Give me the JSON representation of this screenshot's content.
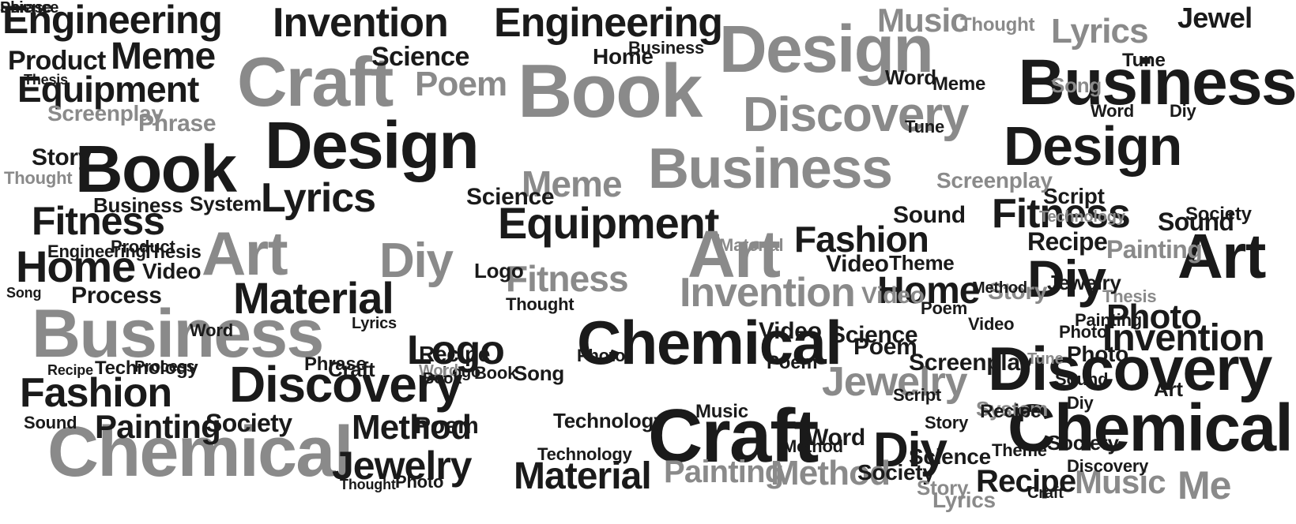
{
  "palette": {
    "dark": "#1a1a1a",
    "mid": "#444444",
    "grey": "#8a8a8a",
    "light": "#b5b5b5"
  },
  "words": [
    {
      "text": "Engineering",
      "color": "dark"
    },
    {
      "text": "Invention",
      "color": "dark"
    },
    {
      "text": "Engineering",
      "color": "dark"
    },
    {
      "text": "Design",
      "color": "grey"
    },
    {
      "text": "Music",
      "color": "grey"
    },
    {
      "text": "Lyrics",
      "color": "grey"
    },
    {
      "text": "Jewel",
      "color": "dark"
    },
    {
      "text": "Meme",
      "color": "dark"
    },
    {
      "text": "Craft",
      "color": "grey"
    },
    {
      "text": "Book",
      "color": "grey"
    },
    {
      "text": "Business",
      "color": "dark"
    },
    {
      "text": "Product",
      "color": "dark"
    },
    {
      "text": "Equipment",
      "color": "dark"
    },
    {
      "text": "Discovery",
      "color": "grey"
    },
    {
      "text": "Design",
      "color": "dark"
    },
    {
      "text": "Book",
      "color": "dark"
    },
    {
      "text": "Business",
      "color": "grey"
    },
    {
      "text": "Design",
      "color": "dark"
    },
    {
      "text": "Lyrics",
      "color": "dark"
    },
    {
      "text": "Meme",
      "color": "grey"
    },
    {
      "text": "Fitness",
      "color": "dark"
    },
    {
      "text": "Art",
      "color": "grey"
    },
    {
      "text": "Diy",
      "color": "grey"
    },
    {
      "text": "Equipment",
      "color": "dark"
    },
    {
      "text": "Art",
      "color": "grey"
    },
    {
      "text": "Fashion",
      "color": "dark"
    },
    {
      "text": "Fitness",
      "color": "dark"
    },
    {
      "text": "Art",
      "color": "dark"
    },
    {
      "text": "Home",
      "color": "dark"
    },
    {
      "text": "Fitness",
      "color": "grey"
    },
    {
      "text": "Invention",
      "color": "grey"
    },
    {
      "text": "Material",
      "color": "dark"
    },
    {
      "text": "Home",
      "color": "dark"
    },
    {
      "text": "Diy",
      "color": "dark"
    },
    {
      "text": "Business",
      "color": "grey"
    },
    {
      "text": "Chemical",
      "color": "dark"
    },
    {
      "text": "Logo",
      "color": "dark"
    },
    {
      "text": "Photo",
      "color": "dark"
    },
    {
      "text": "Invention",
      "color": "dark"
    },
    {
      "text": "Discovery",
      "color": "dark"
    },
    {
      "text": "Fashion",
      "color": "dark"
    },
    {
      "text": "Discovery",
      "color": "dark"
    },
    {
      "text": "Jewelry",
      "color": "grey"
    },
    {
      "text": "Craft",
      "color": "dark"
    },
    {
      "text": "Chemical",
      "color": "grey"
    },
    {
      "text": "Chemical",
      "color": "dark"
    },
    {
      "text": "Painting",
      "color": "dark"
    },
    {
      "text": "Method",
      "color": "dark"
    },
    {
      "text": "Jewelry",
      "color": "dark"
    },
    {
      "text": "Diy",
      "color": "dark"
    },
    {
      "text": "Material",
      "color": "dark"
    },
    {
      "text": "Painting",
      "color": "grey"
    },
    {
      "text": "Method",
      "color": "grey"
    },
    {
      "text": "Recipe",
      "color": "dark"
    },
    {
      "text": "Music",
      "color": "grey"
    },
    {
      "text": "Me",
      "color": "grey"
    },
    {
      "text": "Thesis",
      "color": "dark"
    },
    {
      "text": "Science",
      "color": "dark"
    },
    {
      "text": "Poem",
      "color": "grey"
    },
    {
      "text": "Home",
      "color": "dark"
    },
    {
      "text": "Diy",
      "color": "dark"
    },
    {
      "text": "Screenplay",
      "color": "grey"
    },
    {
      "text": "Phrase",
      "color": "grey"
    },
    {
      "text": "Story",
      "color": "dark"
    },
    {
      "text": "Thought",
      "color": "grey"
    },
    {
      "text": "Business",
      "color": "dark"
    },
    {
      "text": "System",
      "color": "dark"
    },
    {
      "text": "Engineering",
      "color": "dark"
    },
    {
      "text": "Thesis",
      "color": "dark"
    },
    {
      "text": "Video",
      "color": "dark"
    },
    {
      "text": "Process",
      "color": "dark"
    },
    {
      "text": "Song",
      "color": "dark"
    },
    {
      "text": "Product",
      "color": "dark"
    },
    {
      "text": "Word",
      "color": "dark"
    },
    {
      "text": "Technology",
      "color": "dark"
    },
    {
      "text": "Recipe",
      "color": "dark"
    },
    {
      "text": "Society",
      "color": "dark"
    },
    {
      "text": "Craft",
      "color": "dark"
    },
    {
      "text": "Book",
      "color": "dark"
    },
    {
      "text": "Process",
      "color": "dark"
    },
    {
      "text": "Lyrics",
      "color": "dark"
    },
    {
      "text": "Phrase",
      "color": "dark"
    },
    {
      "text": "Sound",
      "color": "dark"
    },
    {
      "text": "Recipe",
      "color": "dark"
    },
    {
      "text": "Logo",
      "color": "dark"
    },
    {
      "text": "Word",
      "color": "grey"
    },
    {
      "text": "Poem",
      "color": "dark"
    },
    {
      "text": "Book",
      "color": "dark"
    },
    {
      "text": "Song",
      "color": "dark"
    },
    {
      "text": "Technology",
      "color": "dark"
    },
    {
      "text": "Thought",
      "color": "dark"
    },
    {
      "text": "Photo",
      "color": "dark"
    },
    {
      "text": "Society",
      "color": "dark"
    },
    {
      "text": "Science",
      "color": "dark"
    },
    {
      "text": "Poem",
      "color": "dark"
    },
    {
      "text": "Painting",
      "color": "grey"
    },
    {
      "text": "Sound",
      "color": "dark"
    },
    {
      "text": "Theme",
      "color": "dark"
    },
    {
      "text": "Script",
      "color": "dark"
    },
    {
      "text": "Screenplay",
      "color": "grey"
    },
    {
      "text": "Tune",
      "color": "dark"
    },
    {
      "text": "Word",
      "color": "dark"
    },
    {
      "text": "Meme",
      "color": "dark"
    },
    {
      "text": "Word",
      "color": "dark"
    },
    {
      "text": "Recipe",
      "color": "dark"
    },
    {
      "text": "Sound",
      "color": "dark"
    },
    {
      "text": "Story",
      "color": "grey"
    },
    {
      "text": "Photo",
      "color": "dark"
    },
    {
      "text": "Video",
      "color": "grey"
    },
    {
      "text": "Poem",
      "color": "dark"
    },
    {
      "text": "Screenplay",
      "color": "dark"
    },
    {
      "text": "Science",
      "color": "dark"
    },
    {
      "text": "Logo",
      "color": "dark"
    },
    {
      "text": "Story",
      "color": "grey"
    },
    {
      "text": "Society",
      "color": "dark"
    },
    {
      "text": "Technology",
      "color": "grey"
    },
    {
      "text": "Video",
      "color": "dark"
    },
    {
      "text": "Song",
      "color": "grey"
    },
    {
      "text": "Thought",
      "color": "grey"
    },
    {
      "text": "Tune",
      "color": "grey"
    },
    {
      "text": "Thesis",
      "color": "grey"
    },
    {
      "text": "System",
      "color": "grey"
    },
    {
      "text": "Discovery",
      "color": "dark"
    },
    {
      "text": "Technology",
      "color": "dark"
    },
    {
      "text": "Business",
      "color": "dark"
    },
    {
      "text": "Word",
      "color": "dark"
    },
    {
      "text": "Method",
      "color": "dark"
    },
    {
      "text": "Lyrics",
      "color": "grey"
    },
    {
      "text": "Material",
      "color": "grey"
    },
    {
      "text": "Painting",
      "color": "dark"
    },
    {
      "text": "Photo",
      "color": "dark"
    },
    {
      "text": "Thought",
      "color": "dark"
    },
    {
      "text": "Music",
      "color": "dark"
    },
    {
      "text": "Video",
      "color": "dark"
    },
    {
      "text": "Story",
      "color": "dark"
    },
    {
      "text": "Science",
      "color": "dark"
    },
    {
      "text": "Poem",
      "color": "dark"
    },
    {
      "text": "Jewelry",
      "color": "dark"
    },
    {
      "text": "Society",
      "color": "dark"
    },
    {
      "text": "Tune",
      "color": "dark"
    },
    {
      "text": "Art",
      "color": "dark"
    },
    {
      "text": "Craft",
      "color": "dark"
    },
    {
      "text": "Sound",
      "color": "dark"
    },
    {
      "text": "Theme",
      "color": "dark"
    },
    {
      "text": "Script",
      "color": "dark"
    },
    {
      "text": "Photo",
      "color": "dark"
    },
    {
      "text": "Video",
      "color": "dark"
    },
    {
      "text": "Recipe",
      "color": "dark"
    },
    {
      "text": "Method",
      "color": "dark"
    },
    {
      "text": "Diy",
      "color": "dark"
    },
    {
      "text": "Phrase",
      "color": "dark"
    },
    {
      "text": "Science",
      "color": "dark"
    }
  ]
}
